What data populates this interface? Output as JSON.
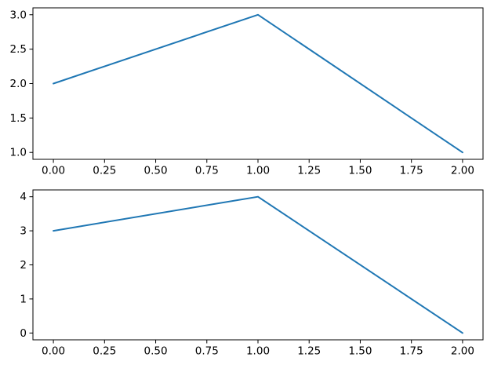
{
  "figure": {
    "background": "#ffffff",
    "spine_color": "#000000",
    "tick_color": "#000000"
  },
  "chart_data": [
    {
      "type": "line",
      "title": "",
      "xlabel": "",
      "ylabel": "",
      "grid": false,
      "legend": null,
      "x": [
        0,
        1,
        2
      ],
      "y": [
        2,
        3,
        1
      ],
      "line_color": "#1f77b4",
      "xlim": [
        -0.1,
        2.1
      ],
      "ylim": [
        0.9,
        3.1
      ],
      "xticks": [
        0,
        0.25,
        0.5,
        0.75,
        1,
        1.25,
        1.5,
        1.75,
        2
      ],
      "xtick_labels": [
        "0.00",
        "0.25",
        "0.50",
        "0.75",
        "1.00",
        "1.25",
        "1.50",
        "1.75",
        "2.00"
      ],
      "yticks": [
        1.0,
        1.5,
        2.0,
        2.5,
        3.0
      ],
      "ytick_labels": [
        "1.0",
        "1.5",
        "2.0",
        "2.5",
        "3.0"
      ]
    },
    {
      "type": "line",
      "title": "",
      "xlabel": "",
      "ylabel": "",
      "grid": false,
      "legend": null,
      "x": [
        0,
        1,
        2
      ],
      "y": [
        3,
        4,
        0
      ],
      "line_color": "#1f77b4",
      "xlim": [
        -0.1,
        2.1
      ],
      "ylim": [
        -0.2,
        4.2
      ],
      "xticks": [
        0,
        0.25,
        0.5,
        0.75,
        1,
        1.25,
        1.5,
        1.75,
        2
      ],
      "xtick_labels": [
        "0.00",
        "0.25",
        "0.50",
        "0.75",
        "1.00",
        "1.25",
        "1.50",
        "1.75",
        "2.00"
      ],
      "yticks": [
        0,
        1,
        2,
        3,
        4
      ],
      "ytick_labels": [
        "0",
        "1",
        "2",
        "3",
        "4"
      ]
    }
  ]
}
